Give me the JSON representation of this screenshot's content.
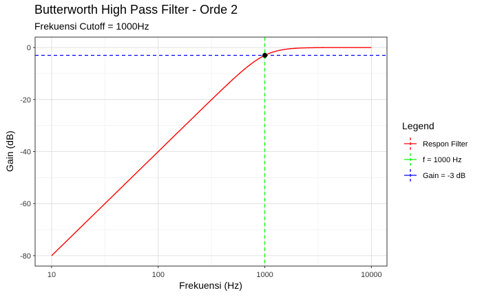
{
  "chart_data": {
    "type": "line",
    "title": "Butterworth High Pass Filter - Orde 2",
    "subtitle": "Frekuensi Cutoff = 1000Hz",
    "xlabel": "Frekuensi (Hz)",
    "ylabel": "Gain (dB)",
    "x_scale": "log10",
    "xlim": [
      7,
      14000
    ],
    "ylim": [
      -84,
      4
    ],
    "x_ticks": [
      10,
      100,
      1000,
      10000
    ],
    "x_tick_labels": [
      "10",
      "100",
      "1000",
      "10000"
    ],
    "y_ticks": [
      0,
      -20,
      -40,
      -60,
      -80
    ],
    "y_tick_labels": [
      "0",
      "-20",
      "-40",
      "-60",
      "-80"
    ],
    "grid": true,
    "legend": {
      "title": "Legend",
      "position": "right",
      "items": [
        {
          "label": "Respon Filter",
          "color": "#ff0000"
        },
        {
          "label": "f = 1000 Hz",
          "color": "#00ff00"
        },
        {
          "label": "Gain = -3 dB",
          "color": "#0000ff"
        }
      ]
    },
    "series": [
      {
        "name": "Respon Filter",
        "color": "#ff0000",
        "x": [
          10,
          20,
          50,
          100,
          200,
          300,
          500,
          700,
          800,
          1000,
          1200,
          1500,
          2000,
          3000,
          5000,
          10000
        ],
        "y": [
          -80,
          -67.96,
          -52.04,
          -40,
          -27.97,
          -20.92,
          -12.3,
          -7.08,
          -5.36,
          -3.01,
          -1.71,
          -0.8,
          -0.26,
          -0.05,
          -0.01,
          0
        ]
      }
    ],
    "reference_lines": [
      {
        "name": "f = 1000 Hz",
        "orientation": "vertical",
        "value": 1000,
        "color": "#00ff00",
        "style": "dashed"
      },
      {
        "name": "Gain = -3 dB",
        "orientation": "horizontal",
        "value": -3,
        "color": "#0000ff",
        "style": "dashed"
      }
    ],
    "marker": {
      "x": 1000,
      "y": -3.01,
      "color": "#000000"
    }
  }
}
